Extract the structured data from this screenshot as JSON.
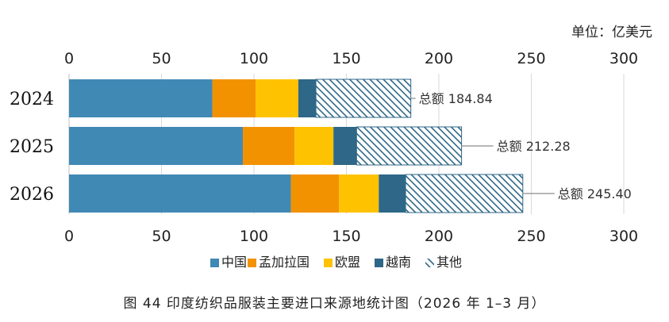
{
  "chart_data": {
    "type": "bar",
    "orientation": "horizontal",
    "stacked": true,
    "unit_label": "单位：亿美元",
    "caption": "图 44  印度纺织品服装主要进口来源地统计图（2026 年 1–3 月）",
    "categories": [
      "2024",
      "2025",
      "2026"
    ],
    "xlim": [
      0,
      300
    ],
    "xticks": [
      0,
      50,
      100,
      150,
      200,
      250,
      300
    ],
    "grid": true,
    "legend_position": "bottom",
    "series": [
      {
        "name": "中国",
        "color": "#4189b5",
        "pattern": "solid",
        "values": [
          77.5,
          94,
          120
        ]
      },
      {
        "name": "孟加拉国",
        "color": "#f39200",
        "pattern": "solid",
        "values": [
          23.5,
          28,
          26
        ]
      },
      {
        "name": "欧盟",
        "color": "#fec200",
        "pattern": "solid",
        "values": [
          23,
          21,
          21.5
        ]
      },
      {
        "name": "越南",
        "color": "#2e6787",
        "pattern": "solid",
        "values": [
          9.5,
          12.5,
          14.5
        ]
      },
      {
        "name": "其他",
        "color": "#2e6787",
        "pattern": "hatch",
        "values": [
          51.34,
          56.78,
          63.4
        ]
      }
    ],
    "totals": [
      "总额 184.84",
      "总额 212.28",
      "总额 245.40"
    ]
  }
}
